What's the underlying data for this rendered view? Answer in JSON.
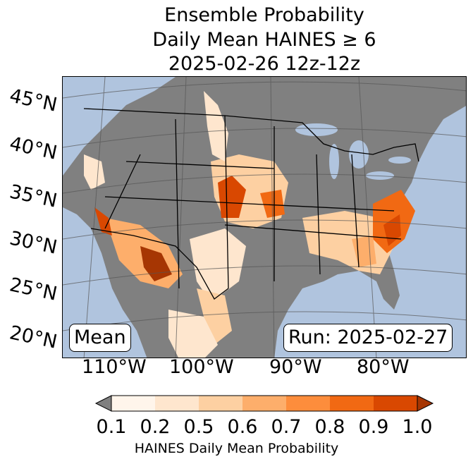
{
  "title": {
    "line1": "Ensemble Probability",
    "line2": "Daily Mean HAINES ≥ 6",
    "line3": "2025-02-26 12z-12z"
  },
  "map": {
    "lat_labels": [
      "45°N",
      "40°N",
      "35°N",
      "30°N",
      "25°N",
      "20°N"
    ],
    "lon_labels": [
      "110°W",
      "100°W",
      "90°W",
      "80°W"
    ],
    "stat_box": "Mean",
    "run_box": "Run: 2025-02-27",
    "colors": {
      "ocean": "#b0c4de",
      "land_below_threshold": "#808080",
      "borders": "#000000",
      "graticule": "#555555"
    }
  },
  "colorbar": {
    "label": "HAINES Daily Mean Probability",
    "ticks": [
      "0.1",
      "0.2",
      "0.5",
      "0.6",
      "0.7",
      "0.8",
      "0.9",
      "1.0"
    ],
    "bins": [
      {
        "from": 0.1,
        "to": 0.2,
        "color": "#fff5eb"
      },
      {
        "from": 0.2,
        "to": 0.5,
        "color": "#fee6ce"
      },
      {
        "from": 0.5,
        "to": 0.6,
        "color": "#fdd0a2"
      },
      {
        "from": 0.6,
        "to": 0.7,
        "color": "#fdae6b"
      },
      {
        "from": 0.7,
        "to": 0.8,
        "color": "#fd8d3c"
      },
      {
        "from": 0.8,
        "to": 0.9,
        "color": "#f16913"
      },
      {
        "from": 0.9,
        "to": 1.0,
        "color": "#d94801"
      }
    ],
    "under_color": "#808080",
    "over_color": "#a63603"
  }
}
